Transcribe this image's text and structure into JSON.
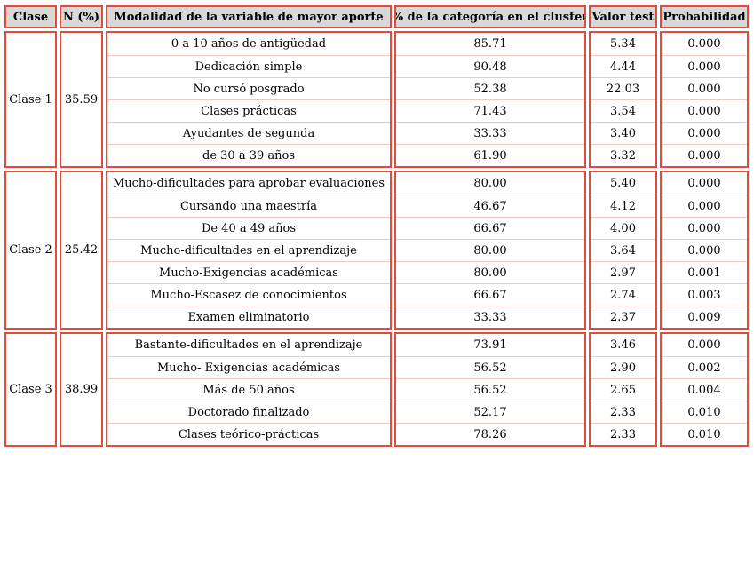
{
  "headers": [
    "Clase",
    "N (%)",
    "Modalidad de la variable de mayor aporte",
    "% de la categoría en el cluster",
    "Valor test",
    "Probabilidad"
  ],
  "groups": [
    {
      "clase": "Clase 1",
      "n": "35.59",
      "rows": [
        {
          "modalidad": "0 a 10 años de antigüedad",
          "pct": "85.71",
          "valor": "5.34",
          "prob": "0.000"
        },
        {
          "modalidad": "Dedicación simple",
          "pct": "90.48",
          "valor": "4.44",
          "prob": "0.000"
        },
        {
          "modalidad": "No cursó posgrado",
          "pct": "52.38",
          "valor": "22.03",
          "prob": "0.000"
        },
        {
          "modalidad": "Clases prácticas",
          "pct": "71.43",
          "valor": "3.54",
          "prob": "0.000"
        },
        {
          "modalidad": "Ayudantes de segunda",
          "pct": "33.33",
          "valor": "3.40",
          "prob": "0.000"
        },
        {
          "modalidad": "de 30 a 39 años",
          "pct": "61.90",
          "valor": "3.32",
          "prob": "0.000"
        }
      ]
    },
    {
      "clase": "Clase 2",
      "n": "25.42",
      "rows": [
        {
          "modalidad": "Mucho-dificultades para aprobar evaluaciones",
          "pct": "80.00",
          "valor": "5.40",
          "prob": "0.000"
        },
        {
          "modalidad": "Cursando una maestría",
          "pct": "46.67",
          "valor": "4.12",
          "prob": "0.000"
        },
        {
          "modalidad": "De 40 a 49 años",
          "pct": "66.67",
          "valor": "4.00",
          "prob": "0.000"
        },
        {
          "modalidad": "Mucho-dificultades en el aprendizaje",
          "pct": "80.00",
          "valor": "3.64",
          "prob": "0.000"
        },
        {
          "modalidad": "Mucho-Exigencias académicas",
          "pct": "80.00",
          "valor": "2.97",
          "prob": "0.001"
        },
        {
          "modalidad": "Mucho-Escasez de conocimientos",
          "pct": "66.67",
          "valor": "2.74",
          "prob": "0.003"
        },
        {
          "modalidad": "Examen eliminatorio",
          "pct": "33.33",
          "valor": "2.37",
          "prob": "0.009"
        }
      ]
    },
    {
      "clase": "Clase 3",
      "n": "38.99",
      "rows": [
        {
          "modalidad": "Bastante-dificultades en el aprendizaje",
          "pct": "73.91",
          "valor": "3.46",
          "prob": "0.000"
        },
        {
          "modalidad": "Mucho- Exigencias académicas",
          "pct": "56.52",
          "valor": "2.90",
          "prob": "0.002"
        },
        {
          "modalidad": "Más de 50 años",
          "pct": "56.52",
          "valor": "2.65",
          "prob": "0.004"
        },
        {
          "modalidad": "Doctorado finalizado",
          "pct": "52.17",
          "valor": "2.33",
          "prob": "0.010"
        },
        {
          "modalidad": "Clases teórico-prácticas",
          "pct": "78.26",
          "valor": "2.33",
          "prob": "0.010"
        }
      ]
    }
  ]
}
